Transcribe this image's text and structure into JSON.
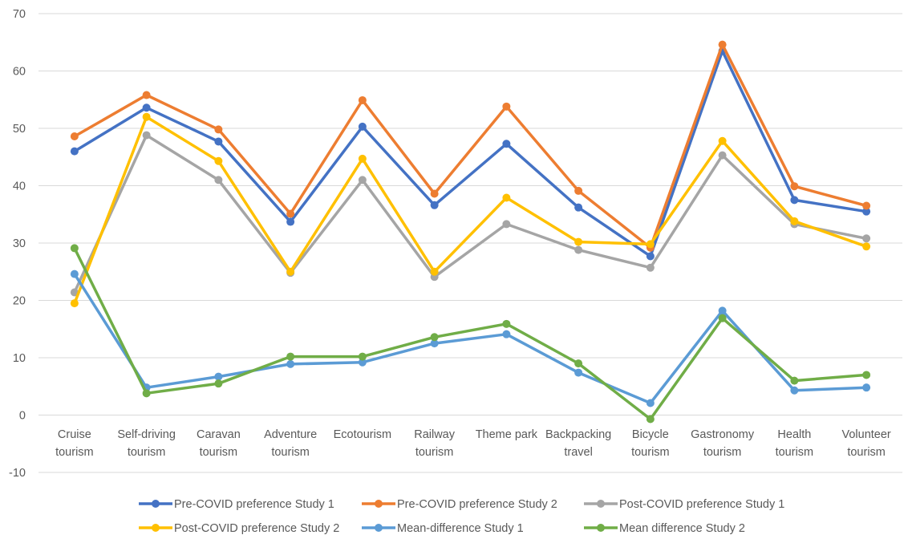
{
  "chart_data": {
    "type": "line",
    "title": "",
    "xlabel": "",
    "ylabel": "",
    "ylim": [
      -10,
      70
    ],
    "yticks": [
      -10,
      0,
      10,
      20,
      30,
      40,
      50,
      60,
      70
    ],
    "grid": true,
    "legend_position": "bottom",
    "categories": [
      [
        "Cruise",
        "tourism"
      ],
      [
        "Self-driving",
        "tourism"
      ],
      [
        "Caravan",
        "tourism"
      ],
      [
        "Adventure",
        "tourism"
      ],
      [
        "Ecotourism"
      ],
      [
        "Railway",
        "tourism"
      ],
      [
        "Theme park"
      ],
      [
        "Backpacking",
        "travel"
      ],
      [
        "Bicycle",
        "tourism"
      ],
      [
        "Gastronomy",
        "tourism"
      ],
      [
        "Health",
        "tourism"
      ],
      [
        "Volunteer",
        "tourism"
      ]
    ],
    "series": [
      {
        "name": "Pre-COVID preference Study 1",
        "color": "#4472C4",
        "values": [
          46.0,
          53.6,
          47.7,
          33.7,
          50.3,
          36.6,
          47.3,
          36.2,
          27.7,
          63.5,
          37.5,
          35.5
        ]
      },
      {
        "name": "Pre-COVID preference Study 2",
        "color": "#ED7D31",
        "values": [
          48.6,
          55.8,
          49.8,
          35.1,
          54.9,
          38.6,
          53.8,
          39.1,
          29.2,
          64.6,
          39.9,
          36.5
        ]
      },
      {
        "name": "Post-COVID preference Study 1",
        "color": "#A5A5A5",
        "values": [
          21.4,
          48.8,
          41.0,
          24.8,
          41.0,
          24.1,
          33.3,
          28.8,
          25.7,
          45.3,
          33.3,
          30.8
        ]
      },
      {
        "name": "Post-COVID preference Study 2",
        "color": "#FFC000",
        "values": [
          19.5,
          52.0,
          44.3,
          25.0,
          44.7,
          25.0,
          37.9,
          30.2,
          29.8,
          47.8,
          33.8,
          29.4
        ]
      },
      {
        "name": "Mean-difference Study 1",
        "color": "#5B9BD5",
        "values": [
          24.6,
          4.8,
          6.7,
          8.9,
          9.2,
          12.5,
          14.1,
          7.4,
          2.1,
          18.2,
          4.3,
          4.8
        ]
      },
      {
        "name": "Mean difference Study 2",
        "color": "#70AD47",
        "values": [
          29.1,
          3.8,
          5.5,
          10.2,
          10.2,
          13.6,
          15.9,
          9.0,
          -0.7,
          16.9,
          6.0,
          7.0
        ]
      }
    ]
  }
}
